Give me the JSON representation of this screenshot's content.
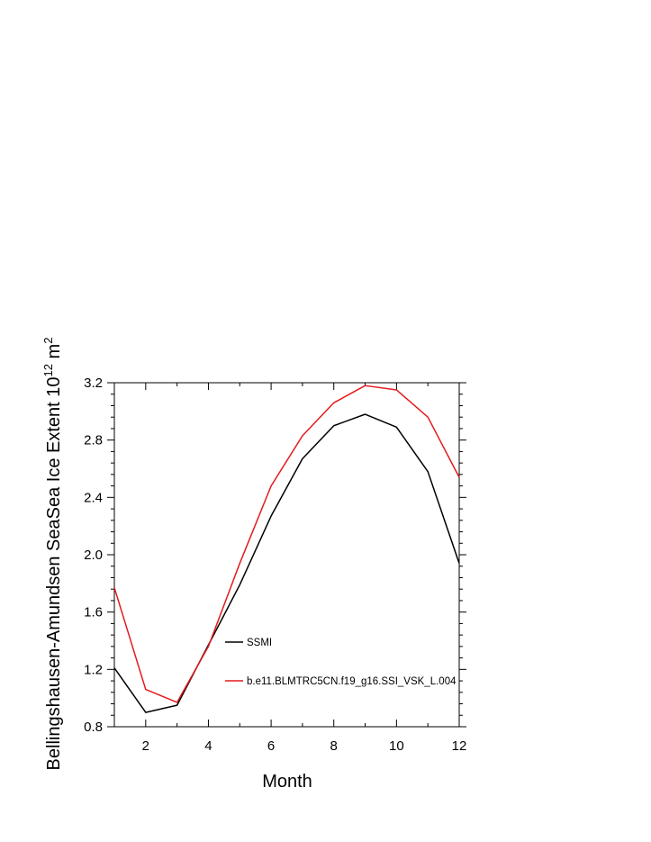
{
  "chart_data": {
    "type": "line",
    "xlabel": "Month",
    "ylabel_main": "Bellingshausen-Amundsen SeaSea Ice Extent 10",
    "ylabel_exp": "12",
    "ylabel_unit": " m",
    "ylabel_unit_exp": "2",
    "xlim": [
      1,
      12
    ],
    "ylim": [
      0.8,
      3.2
    ],
    "x_ticks": [
      2,
      4,
      6,
      8,
      10,
      12
    ],
    "x_tick_labels": [
      "2",
      "4",
      "6",
      "8",
      "10",
      "12"
    ],
    "y_ticks": [
      0.8,
      1.2,
      1.6,
      2.0,
      2.4,
      2.8,
      3.2
    ],
    "y_tick_labels": [
      "0.8",
      "1.2",
      "1.6",
      "2.0",
      "2.4",
      "2.8",
      "3.2"
    ],
    "grid": false,
    "legend_position": "inside lower-right",
    "x": [
      1,
      2,
      3,
      4,
      5,
      6,
      7,
      8,
      9,
      10,
      11,
      12
    ],
    "series": [
      {
        "name": "SSMI",
        "color": "#000000",
        "values": [
          1.21,
          0.9,
          0.95,
          1.37,
          1.79,
          2.27,
          2.67,
          2.9,
          2.98,
          2.89,
          2.58,
          1.94
        ]
      },
      {
        "name": "b.e11.BLMTRC5CN.f19_g16.SSI_VSK_L.004",
        "color": "#e31a1c",
        "values": [
          1.77,
          1.06,
          0.97,
          1.36,
          1.94,
          2.48,
          2.83,
          3.06,
          3.18,
          3.15,
          2.96,
          2.54
        ]
      }
    ]
  }
}
